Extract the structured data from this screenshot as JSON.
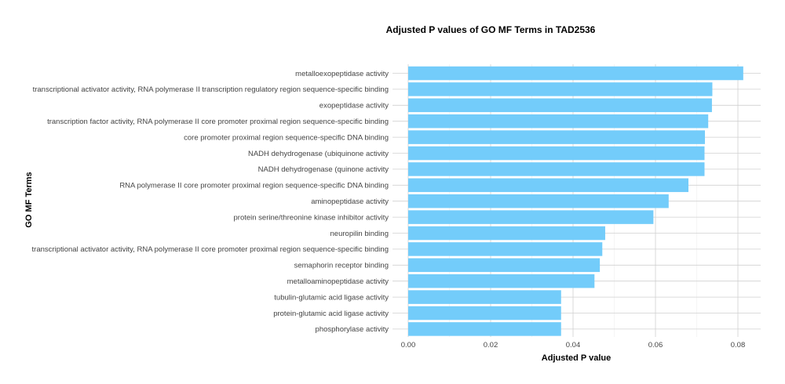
{
  "chart_data": {
    "type": "bar",
    "orientation": "horizontal",
    "title": "Adjusted P values of GO MF Terms in TAD2536",
    "xlabel": "Adjusted P value",
    "ylabel": "GO MF Terms",
    "xlim": [
      0,
      0.085
    ],
    "xticks": [
      "0.00",
      "0.02",
      "0.04",
      "0.06",
      "0.08"
    ],
    "grid": true,
    "bar_color": "#73ccfa",
    "categories": [
      "metalloexopeptidase activity",
      "transcriptional activator activity, RNA polymerase II transcription regulatory region sequence-specific binding",
      "exopeptidase activity",
      "transcription factor activity, RNA polymerase II core promoter proximal region sequence-specific binding",
      "core promoter proximal region sequence-specific DNA binding",
      "NADH dehydrogenase (ubiquinone activity",
      "NADH dehydrogenase (quinone activity",
      "RNA polymerase II core promoter proximal region sequence-specific DNA binding",
      "aminopeptidase activity",
      "protein serine/threonine kinase inhibitor activity",
      "neuropilin binding",
      "transcriptional activator activity, RNA polymerase II core promoter proximal region sequence-specific binding",
      "semaphorin receptor binding",
      "metalloaminopeptidase activity",
      "tubulin-glutamic acid ligase activity",
      "protein-glutamic acid ligase activity",
      "phosphorylase activity"
    ],
    "values": [
      0.0813,
      0.0738,
      0.0737,
      0.0728,
      0.072,
      0.0719,
      0.0719,
      0.068,
      0.0632,
      0.0595,
      0.0478,
      0.0471,
      0.0465,
      0.0452,
      0.0371,
      0.0371,
      0.0371
    ]
  }
}
